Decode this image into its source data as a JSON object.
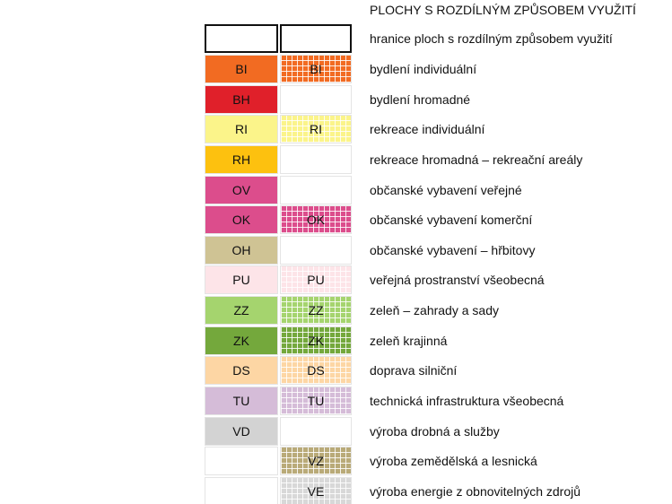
{
  "title": "PLOCHY S ROZDÍLNÝM ZPŮSOBEM VYUŽITÍ",
  "boundary": {
    "label": "hranice ploch s rozdílným způsobem využití"
  },
  "rows": [
    {
      "code": "BI",
      "label": "bydlení individuální",
      "color": "#f26b22",
      "left": true,
      "hatched": true
    },
    {
      "code": "BH",
      "label": "bydlení hromadné",
      "color": "#e0202a",
      "left": true,
      "hatched": false
    },
    {
      "code": "RI",
      "label": "rekreace individuální",
      "color": "#fbf48a",
      "left": true,
      "hatched": true
    },
    {
      "code": "RH",
      "label": "rekreace hromadná – rekreační areály",
      "color": "#fdc10f",
      "left": true,
      "hatched": false
    },
    {
      "code": "OV",
      "label": "občanské vybavení veřejné",
      "color": "#dc4d8c",
      "left": true,
      "hatched": false
    },
    {
      "code": "OK",
      "label": "občanské vybavení komerční",
      "color": "#dc4d8c",
      "left": true,
      "hatched": true
    },
    {
      "code": "OH",
      "label": "občanské vybavení – hřbitovy",
      "color": "#cfc394",
      "left": true,
      "hatched": false
    },
    {
      "code": "PU",
      "label": "veřejná prostranství všeobecná",
      "color": "#fde4e8",
      "left": true,
      "hatched": true
    },
    {
      "code": "ZZ",
      "label": "zeleň – zahrady a sady",
      "color": "#a5d46e",
      "left": true,
      "hatched": true
    },
    {
      "code": "ZK",
      "label": "zeleň krajinná",
      "color": "#74a83c",
      "left": true,
      "hatched": true
    },
    {
      "code": "DS",
      "label": "doprava silniční",
      "color": "#fdd6a4",
      "left": true,
      "hatched": true
    },
    {
      "code": "TU",
      "label": "technická infrastruktura všeobecná",
      "color": "#d5bcd8",
      "left": true,
      "hatched": true
    },
    {
      "code": "VD",
      "label": "výroba drobná a služby",
      "color": "#d3d3d3",
      "left": true,
      "hatched": false
    },
    {
      "code": "VZ",
      "label": "výroba zemědělská a lesnická",
      "color": "#b9aa78",
      "left": false,
      "hatched": true
    },
    {
      "code": "VE",
      "label": "výroba energie z obnovitelných zdrojů",
      "color": "#d8d8d8",
      "left": false,
      "hatched": true
    }
  ]
}
